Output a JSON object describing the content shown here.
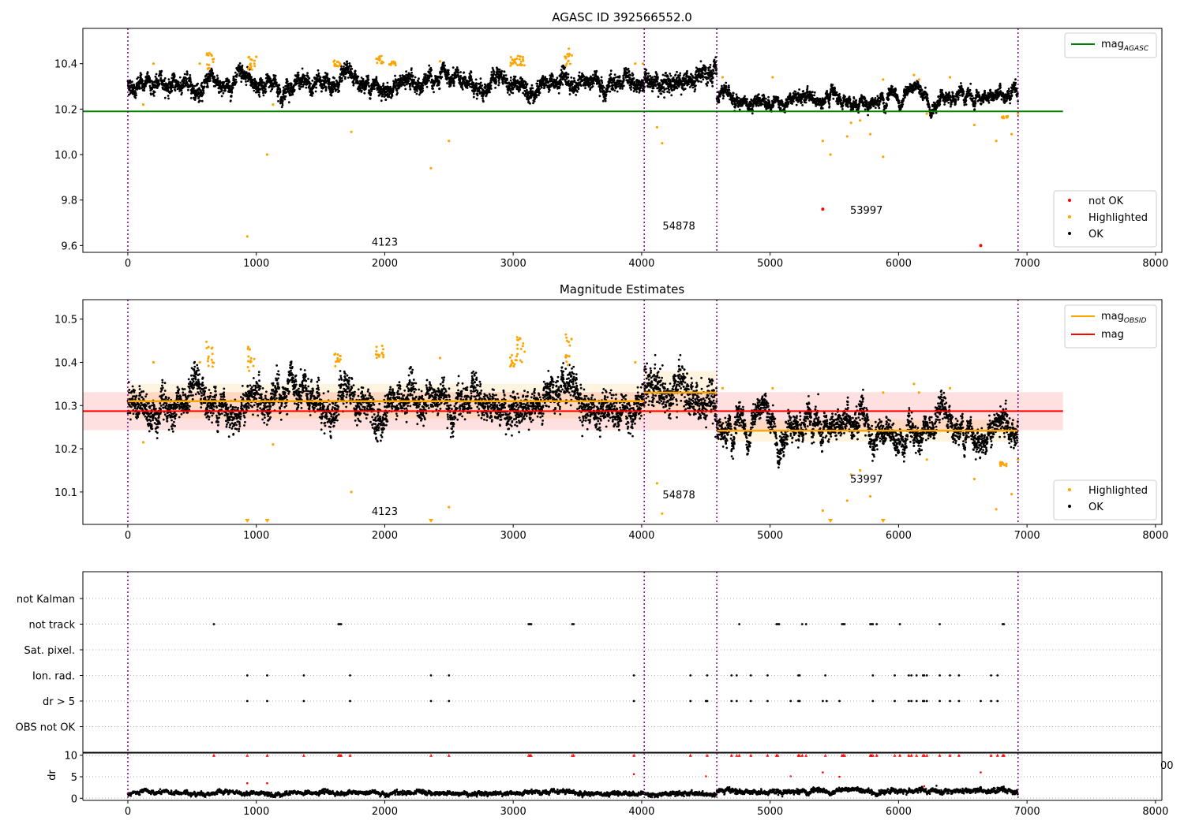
{
  "colors": {
    "ok": "#000000",
    "highlighted": "#ffa500",
    "not_ok": "#ff0000",
    "agasc": "#008000",
    "mag": "#ff0000",
    "obsid": "#ffa500",
    "obs_marker": "#800080",
    "flag_grid": "#b0b0b0"
  },
  "chart_data": [
    {
      "type": "scatter",
      "title": "AGASC ID 392566552.0",
      "xlabel": "",
      "ylabel": "",
      "xlim": [
        -350,
        8050
      ],
      "ylim": [
        9.57,
        10.555
      ],
      "xticks": [
        0,
        1000,
        2000,
        3000,
        4000,
        5000,
        6000,
        7000,
        8000
      ],
      "yticks": [
        9.6,
        9.8,
        10.0,
        10.2,
        10.4
      ],
      "ytick_labels": [
        "9.6",
        "9.8",
        "10.0",
        "10.2",
        "10.4"
      ],
      "legend_lines": [
        {
          "name": "mag_AGASC",
          "label_main": "mag",
          "label_sub": "AGASC",
          "color": "#008000"
        }
      ],
      "legend_points": [
        {
          "name": "not OK",
          "color": "#ff0000"
        },
        {
          "name": "Highlighted",
          "color": "#ffa500"
        },
        {
          "name": "OK",
          "color": "#000000"
        }
      ],
      "legend_lines_loc": "top-right",
      "legend_points_loc": "lower-right",
      "mag_agasc": {
        "value": 10.19,
        "x_range": [
          -350,
          7280
        ]
      },
      "obs_boundaries": [
        0,
        4020,
        4585,
        6930
      ],
      "obs_labels": [
        {
          "text": "4123",
          "x": 2000,
          "y": 9.6
        },
        {
          "text": "54878",
          "x": 4290,
          "y": 9.67
        },
        {
          "text": "53997",
          "x": 5750,
          "y": 9.74
        }
      ],
      "segments": [
        {
          "x_start": 0,
          "x_end": 4020,
          "mean": 10.31,
          "scatter": 0.04
        },
        {
          "x_start": 4020,
          "x_end": 4585,
          "mean": 10.33,
          "scatter": 0.05
        },
        {
          "x_start": 4585,
          "x_end": 6930,
          "mean": 10.245,
          "scatter": 0.025
        }
      ],
      "highlight_clusters": [
        {
          "x": 640,
          "y0": 10.37,
          "y1": 10.45
        },
        {
          "x": 960,
          "y0": 10.37,
          "y1": 10.44
        },
        {
          "x": 1630,
          "y0": 10.38,
          "y1": 10.42
        },
        {
          "x": 1960,
          "y0": 10.4,
          "y1": 10.44
        },
        {
          "x": 2060,
          "y0": 10.39,
          "y1": 10.41
        },
        {
          "x": 3000,
          "y0": 10.39,
          "y1": 10.43
        },
        {
          "x": 3060,
          "y0": 10.39,
          "y1": 10.46
        },
        {
          "x": 3430,
          "y0": 10.39,
          "y1": 10.47
        },
        {
          "x": 6820,
          "y0": 10.16,
          "y1": 10.17
        }
      ],
      "highlighted_points": [
        {
          "x": 120,
          "y": 10.22
        },
        {
          "x": 200,
          "y": 10.4
        },
        {
          "x": 560,
          "y": 10.4
        },
        {
          "x": 1000,
          "y": 10.43
        },
        {
          "x": 1130,
          "y": 10.22
        },
        {
          "x": 1740,
          "y": 10.1
        },
        {
          "x": 1085,
          "y": 10.0
        },
        {
          "x": 930,
          "y": 9.64
        },
        {
          "x": 2360,
          "y": 9.94
        },
        {
          "x": 2500,
          "y": 10.06
        },
        {
          "x": 2430,
          "y": 10.41
        },
        {
          "x": 4120,
          "y": 10.12
        },
        {
          "x": 4160,
          "y": 10.05
        },
        {
          "x": 3950,
          "y": 10.4
        },
        {
          "x": 4010,
          "y": 10.4
        },
        {
          "x": 4630,
          "y": 10.34
        },
        {
          "x": 5020,
          "y": 10.34
        },
        {
          "x": 5410,
          "y": 10.06
        },
        {
          "x": 5470,
          "y": 10.0
        },
        {
          "x": 5600,
          "y": 10.08
        },
        {
          "x": 5630,
          "y": 10.14
        },
        {
          "x": 5700,
          "y": 10.15
        },
        {
          "x": 5780,
          "y": 10.09
        },
        {
          "x": 5880,
          "y": 9.99
        },
        {
          "x": 5880,
          "y": 10.33
        },
        {
          "x": 6120,
          "y": 10.35
        },
        {
          "x": 6160,
          "y": 10.33
        },
        {
          "x": 6220,
          "y": 10.18
        },
        {
          "x": 6400,
          "y": 10.34
        },
        {
          "x": 6590,
          "y": 10.13
        },
        {
          "x": 6760,
          "y": 10.06
        },
        {
          "x": 6880,
          "y": 10.09
        },
        {
          "x": 6930,
          "y": 10.18
        }
      ],
      "not_ok_points": [
        {
          "x": 5410,
          "y": 9.76
        },
        {
          "x": 6640,
          "y": 9.6
        }
      ]
    },
    {
      "type": "scatter",
      "title": "Magnitude Estimates",
      "xlabel": "",
      "ylabel": "",
      "xlim": [
        -350,
        8050
      ],
      "ylim": [
        10.025,
        10.545
      ],
      "xticks": [
        0,
        1000,
        2000,
        3000,
        4000,
        5000,
        6000,
        7000,
        8000
      ],
      "yticks": [
        10.1,
        10.2,
        10.3,
        10.4,
        10.5
      ],
      "ytick_labels": [
        "10.1",
        "10.2",
        "10.3",
        "10.4",
        "10.5"
      ],
      "legend_lines": [
        {
          "name": "mag_OBSID",
          "label_main": "mag",
          "label_sub": "OBSID",
          "color": "#ffa500"
        },
        {
          "name": "mag",
          "label_main": "mag",
          "label_sub": "",
          "color": "#ff0000"
        }
      ],
      "legend_points": [
        {
          "name": "Highlighted",
          "color": "#ffa500"
        },
        {
          "name": "OK",
          "color": "#000000"
        }
      ],
      "legend_lines_loc": "top-right",
      "legend_points_loc": "lower-right",
      "mag": {
        "value": 10.287,
        "sigma": 0.044,
        "x_range": [
          -350,
          7280
        ]
      },
      "mag_obsid": [
        {
          "x_start": 0,
          "x_end": 4020,
          "value": 10.31,
          "sigma": 0.04
        },
        {
          "x_start": 4020,
          "x_end": 4585,
          "value": 10.33,
          "sigma": 0.05
        },
        {
          "x_start": 4585,
          "x_end": 6930,
          "value": 10.242,
          "sigma": 0.025
        }
      ],
      "obs_boundaries": [
        0,
        4020,
        4585,
        6930
      ],
      "obs_labels": [
        {
          "text": "4123",
          "x": 2000,
          "y": 10.047
        },
        {
          "text": "54878",
          "x": 4290,
          "y": 10.085
        },
        {
          "text": "53997",
          "x": 5750,
          "y": 10.122
        }
      ],
      "segments": [
        {
          "x_start": 0,
          "x_end": 4020,
          "mean": 10.305,
          "scatter": 0.045
        },
        {
          "x_start": 4020,
          "x_end": 4585,
          "mean": 10.33,
          "scatter": 0.055
        },
        {
          "x_start": 4585,
          "x_end": 6930,
          "mean": 10.245,
          "scatter": 0.035
        }
      ],
      "highlight_clusters": [
        {
          "x": 640,
          "y0": 10.39,
          "y1": 10.45
        },
        {
          "x": 960,
          "y0": 10.38,
          "y1": 10.44
        },
        {
          "x": 1630,
          "y0": 10.39,
          "y1": 10.42
        },
        {
          "x": 1960,
          "y0": 10.41,
          "y1": 10.44
        },
        {
          "x": 3000,
          "y0": 10.39,
          "y1": 10.42
        },
        {
          "x": 3060,
          "y0": 10.39,
          "y1": 10.46
        },
        {
          "x": 3430,
          "y0": 10.39,
          "y1": 10.47
        },
        {
          "x": 6820,
          "y0": 10.16,
          "y1": 10.17
        }
      ],
      "highlighted_points": [
        {
          "x": 120,
          "y": 10.215
        },
        {
          "x": 200,
          "y": 10.4
        },
        {
          "x": 560,
          "y": 10.4
        },
        {
          "x": 1130,
          "y": 10.21
        },
        {
          "x": 1740,
          "y": 10.1
        },
        {
          "x": 2500,
          "y": 10.065
        },
        {
          "x": 2430,
          "y": 10.41
        },
        {
          "x": 4120,
          "y": 10.12
        },
        {
          "x": 4160,
          "y": 10.05
        },
        {
          "x": 3950,
          "y": 10.4
        },
        {
          "x": 4630,
          "y": 10.34
        },
        {
          "x": 5020,
          "y": 10.34
        },
        {
          "x": 5410,
          "y": 10.057
        },
        {
          "x": 5600,
          "y": 10.08
        },
        {
          "x": 5630,
          "y": 10.14
        },
        {
          "x": 5700,
          "y": 10.15
        },
        {
          "x": 5780,
          "y": 10.09
        },
        {
          "x": 5880,
          "y": 10.33
        },
        {
          "x": 6120,
          "y": 10.35
        },
        {
          "x": 6160,
          "y": 10.33
        },
        {
          "x": 6220,
          "y": 10.175
        },
        {
          "x": 6400,
          "y": 10.34
        },
        {
          "x": 6590,
          "y": 10.13
        },
        {
          "x": 6760,
          "y": 10.06
        },
        {
          "x": 6880,
          "y": 10.095
        },
        {
          "x": 6930,
          "y": 10.175
        }
      ],
      "clipped_markers": [
        {
          "x": 930
        },
        {
          "x": 1085
        },
        {
          "x": 2360
        },
        {
          "x": 5470
        },
        {
          "x": 5880
        }
      ]
    },
    {
      "type": "scatter",
      "title": "",
      "xlabel": "",
      "ylabel": "",
      "xlim": [
        -350,
        8050
      ],
      "categories": [
        "not Kalman",
        "not track",
        "Sat. pixel.",
        "Ion. rad.",
        "dr > 5",
        "OBS not OK"
      ],
      "obs_boundaries": [
        0,
        4020,
        4585,
        6930
      ],
      "flags": [
        {
          "category": "not track",
          "x": [
            670,
            1640,
            1650,
            1660,
            3120,
            3130,
            3140,
            3460,
            3470,
            4760,
            5050,
            5060,
            5070,
            5250,
            5280,
            5560,
            5570,
            5580,
            5780,
            5790,
            5800,
            5830,
            6010,
            6320,
            6810,
            6820
          ]
        },
        {
          "category": "Ion. rad.",
          "x": [
            930,
            1085,
            1370,
            1730,
            2360,
            2500,
            3940,
            4380,
            4510,
            4700,
            4740,
            4850,
            4980,
            5220,
            5230,
            5430,
            5800,
            5970,
            6080,
            6100,
            6140,
            6190,
            6200,
            6220,
            6320,
            6400,
            6470,
            6720,
            6770
          ]
        },
        {
          "category": "dr > 5",
          "x": [
            930,
            1085,
            1370,
            1730,
            2360,
            2500,
            3940,
            4380,
            4500,
            4510,
            4700,
            4740,
            4850,
            4980,
            5160,
            5220,
            5230,
            5410,
            5440,
            5540,
            5800,
            5970,
            6080,
            6100,
            6140,
            6190,
            6200,
            6220,
            6320,
            6400,
            6470,
            6640,
            6720,
            6770
          ]
        }
      ]
    },
    {
      "type": "scatter",
      "title": "",
      "xlabel": "",
      "ylabel": "dr",
      "xlim": [
        -350,
        8050
      ],
      "ylim": [
        -0.5,
        10.5
      ],
      "xticks": [
        0,
        1000,
        2000,
        3000,
        4000,
        5000,
        6000,
        7000,
        8000
      ],
      "yticks": [
        0,
        5,
        10
      ],
      "ytick_labels": [
        "0",
        "5",
        "10"
      ],
      "right_tick_label": "00",
      "obs_boundaries": [
        0,
        4020,
        4585,
        6930
      ],
      "segments": [
        {
          "x_start": 0,
          "x_end": 4020,
          "mean": 1.2,
          "scatter": 0.5
        },
        {
          "x_start": 4020,
          "x_end": 4585,
          "mean": 1.0,
          "scatter": 0.5
        },
        {
          "x_start": 4585,
          "x_end": 6930,
          "mean": 1.6,
          "scatter": 0.6
        }
      ],
      "red_marks_at_10": [
        670,
        930,
        1085,
        1370,
        1640,
        1650,
        1660,
        1730,
        2360,
        2500,
        3120,
        3130,
        3140,
        3460,
        3470,
        3940,
        4380,
        4510,
        4700,
        4740,
        4760,
        4850,
        4980,
        5050,
        5060,
        5220,
        5230,
        5250,
        5280,
        5430,
        5560,
        5570,
        5580,
        5780,
        5790,
        5800,
        5830,
        5970,
        6010,
        6080,
        6100,
        6140,
        6190,
        6200,
        6220,
        6320,
        6400,
        6470,
        6720,
        6770,
        6810,
        6820
      ],
      "red_points": [
        {
          "x": 930,
          "y": 3.5
        },
        {
          "x": 1085,
          "y": 3.5
        },
        {
          "x": 3940,
          "y": 5.6
        },
        {
          "x": 4500,
          "y": 5.1
        },
        {
          "x": 5160,
          "y": 5.1
        },
        {
          "x": 5410,
          "y": 6.0
        },
        {
          "x": 5540,
          "y": 5.0
        },
        {
          "x": 6640,
          "y": 6.0
        },
        {
          "x": 6200,
          "y": 2.8
        }
      ]
    }
  ]
}
